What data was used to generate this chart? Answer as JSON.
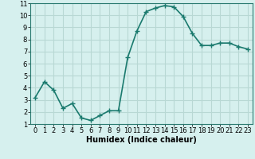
{
  "x": [
    0,
    1,
    2,
    3,
    4,
    5,
    6,
    7,
    8,
    9,
    10,
    11,
    12,
    13,
    14,
    15,
    16,
    17,
    18,
    19,
    20,
    21,
    22,
    23
  ],
  "y": [
    3.2,
    4.5,
    3.8,
    2.3,
    2.7,
    1.5,
    1.3,
    1.7,
    2.1,
    2.1,
    6.5,
    8.7,
    10.3,
    10.6,
    10.8,
    10.7,
    9.9,
    8.5,
    7.5,
    7.5,
    7.7,
    7.7,
    7.4,
    7.2
  ],
  "line_color": "#1a7a6e",
  "marker": "+",
  "marker_size": 4,
  "bg_color": "#d6f0ee",
  "grid_color": "#b8d8d4",
  "xlabel": "Humidex (Indice chaleur)",
  "xlim": [
    -0.5,
    23.5
  ],
  "ylim": [
    1,
    11
  ],
  "xticks": [
    0,
    1,
    2,
    3,
    4,
    5,
    6,
    7,
    8,
    9,
    10,
    11,
    12,
    13,
    14,
    15,
    16,
    17,
    18,
    19,
    20,
    21,
    22,
    23
  ],
  "yticks": [
    1,
    2,
    3,
    4,
    5,
    6,
    7,
    8,
    9,
    10,
    11
  ],
  "xlabel_fontsize": 7,
  "tick_fontsize": 6,
  "line_width": 1.2
}
